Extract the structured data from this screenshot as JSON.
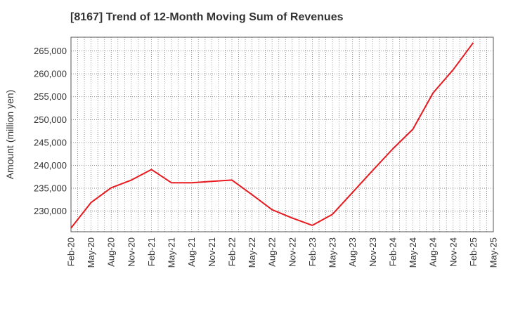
{
  "chart_data": {
    "type": "line",
    "title": "[8167]  Trend of 12-Month Moving Sum of Revenues",
    "xlabel": "",
    "ylabel": "Amount (million yen)",
    "x_tick_labels": [
      "Feb-20",
      "May-20",
      "Aug-20",
      "Nov-20",
      "Feb-21",
      "May-21",
      "Aug-21",
      "Nov-21",
      "Feb-22",
      "May-22",
      "Aug-22",
      "Nov-22",
      "Feb-23",
      "May-23",
      "Aug-23",
      "Nov-23",
      "Feb-24",
      "May-24",
      "Aug-24",
      "Nov-24",
      "Feb-25",
      "May-25"
    ],
    "y_ticks": [
      230000,
      235000,
      240000,
      245000,
      250000,
      255000,
      260000,
      265000
    ],
    "y_tick_labels": [
      "230,000",
      "235,000",
      "240,000",
      "245,000",
      "250,000",
      "255,000",
      "260,000",
      "265,000"
    ],
    "ylim": [
      225500,
      268000
    ],
    "grid": true,
    "series": [
      {
        "color": "#e8191f",
        "x": [
          "Feb-20",
          "May-20",
          "Aug-20",
          "Nov-20",
          "Feb-21",
          "May-21",
          "Aug-21",
          "Nov-21",
          "Feb-22",
          "May-22",
          "Aug-22",
          "Nov-22",
          "Feb-23",
          "May-23",
          "Aug-23",
          "Nov-23",
          "Feb-24",
          "May-24",
          "Aug-24",
          "Nov-24",
          "Feb-25"
        ],
        "values": [
          226300,
          231900,
          235100,
          236800,
          239100,
          236200,
          236200,
          236500,
          236800,
          233600,
          230300,
          228500,
          226900,
          229300,
          234100,
          238900,
          243600,
          247900,
          255800,
          260900,
          266800
        ]
      }
    ]
  }
}
